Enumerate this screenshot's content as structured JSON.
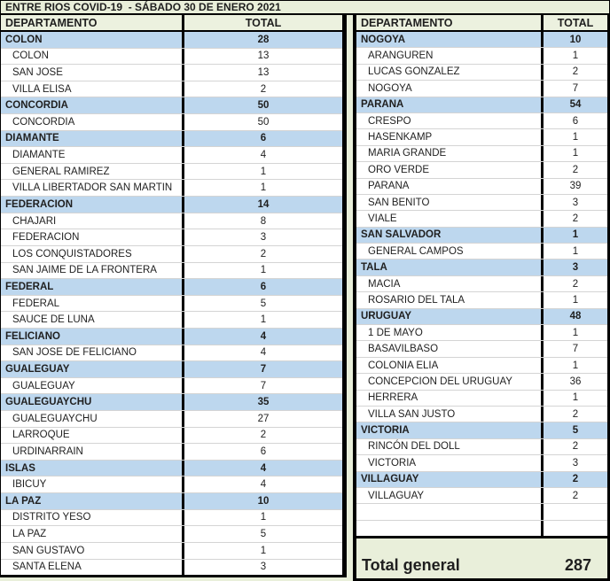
{
  "title": "ENTRE RIOS COVID-19  - SÁBADO 30 DE ENERO 2021",
  "columns": {
    "department": "DEPARTAMENTO",
    "total": "TOTAL"
  },
  "left_table": {
    "rows": [
      {
        "label": "COLON",
        "value": 28,
        "type": "group"
      },
      {
        "label": "COLON",
        "value": 13,
        "type": "item"
      },
      {
        "label": "SAN JOSE",
        "value": 13,
        "type": "item"
      },
      {
        "label": "VILLA ELISA",
        "value": 2,
        "type": "item"
      },
      {
        "label": "CONCORDIA",
        "value": 50,
        "type": "group"
      },
      {
        "label": "CONCORDIA",
        "value": 50,
        "type": "item"
      },
      {
        "label": "DIAMANTE",
        "value": 6,
        "type": "group"
      },
      {
        "label": "DIAMANTE",
        "value": 4,
        "type": "item"
      },
      {
        "label": "GENERAL RAMIREZ",
        "value": 1,
        "type": "item"
      },
      {
        "label": "VILLA LIBERTADOR SAN MARTIN",
        "value": 1,
        "type": "item"
      },
      {
        "label": "FEDERACION",
        "value": 14,
        "type": "group"
      },
      {
        "label": "CHAJARI",
        "value": 8,
        "type": "item"
      },
      {
        "label": "FEDERACION",
        "value": 3,
        "type": "item"
      },
      {
        "label": "LOS CONQUISTADORES",
        "value": 2,
        "type": "item"
      },
      {
        "label": "SAN JAIME DE LA FRONTERA",
        "value": 1,
        "type": "item"
      },
      {
        "label": "FEDERAL",
        "value": 6,
        "type": "group"
      },
      {
        "label": "FEDERAL",
        "value": 5,
        "type": "item"
      },
      {
        "label": "SAUCE DE LUNA",
        "value": 1,
        "type": "item"
      },
      {
        "label": "FELICIANO",
        "value": 4,
        "type": "group"
      },
      {
        "label": "SAN JOSE DE FELICIANO",
        "value": 4,
        "type": "item"
      },
      {
        "label": "GUALEGUAY",
        "value": 7,
        "type": "group"
      },
      {
        "label": "GUALEGUAY",
        "value": 7,
        "type": "item"
      },
      {
        "label": "GUALEGUAYCHU",
        "value": 35,
        "type": "group"
      },
      {
        "label": "GUALEGUAYCHU",
        "value": 27,
        "type": "item"
      },
      {
        "label": "LARROQUE",
        "value": 2,
        "type": "item"
      },
      {
        "label": "URDINARRAIN",
        "value": 6,
        "type": "item"
      },
      {
        "label": "ISLAS",
        "value": 4,
        "type": "group"
      },
      {
        "label": "IBICUY",
        "value": 4,
        "type": "item"
      },
      {
        "label": "LA PAZ",
        "value": 10,
        "type": "group"
      },
      {
        "label": "DISTRITO YESO",
        "value": 1,
        "type": "item"
      },
      {
        "label": "LA PAZ",
        "value": 5,
        "type": "item"
      },
      {
        "label": "SAN GUSTAVO",
        "value": 1,
        "type": "item"
      },
      {
        "label": "SANTA ELENA",
        "value": 3,
        "type": "item"
      }
    ]
  },
  "right_table": {
    "rows": [
      {
        "label": "NOGOYA",
        "value": 10,
        "type": "group"
      },
      {
        "label": "ARANGUREN",
        "value": 1,
        "type": "item"
      },
      {
        "label": "LUCAS GONZALEZ",
        "value": 2,
        "type": "item"
      },
      {
        "label": "NOGOYA",
        "value": 7,
        "type": "item"
      },
      {
        "label": "PARANA",
        "value": 54,
        "type": "group"
      },
      {
        "label": "CRESPO",
        "value": 6,
        "type": "item"
      },
      {
        "label": "HASENKAMP",
        "value": 1,
        "type": "item"
      },
      {
        "label": "MARIA GRANDE",
        "value": 1,
        "type": "item"
      },
      {
        "label": "ORO VERDE",
        "value": 2,
        "type": "item"
      },
      {
        "label": "PARANA",
        "value": 39,
        "type": "item"
      },
      {
        "label": "SAN BENITO",
        "value": 3,
        "type": "item"
      },
      {
        "label": "VIALE",
        "value": 2,
        "type": "item"
      },
      {
        "label": "SAN SALVADOR",
        "value": 1,
        "type": "group"
      },
      {
        "label": "GENERAL CAMPOS",
        "value": 1,
        "type": "item"
      },
      {
        "label": "TALA",
        "value": 3,
        "type": "group"
      },
      {
        "label": "MACIA",
        "value": 2,
        "type": "item"
      },
      {
        "label": "ROSARIO DEL TALA",
        "value": 1,
        "type": "item"
      },
      {
        "label": "URUGUAY",
        "value": 48,
        "type": "group"
      },
      {
        "label": "1 DE MAYO",
        "value": 1,
        "type": "item"
      },
      {
        "label": "BASAVILBASO",
        "value": 7,
        "type": "item"
      },
      {
        "label": "COLONIA ELIA",
        "value": 1,
        "type": "item"
      },
      {
        "label": "CONCEPCION DEL URUGUAY",
        "value": 36,
        "type": "item"
      },
      {
        "label": "HERRERA",
        "value": 1,
        "type": "item"
      },
      {
        "label": "VILLA SAN JUSTO",
        "value": 2,
        "type": "item"
      },
      {
        "label": "VICTORIA",
        "value": 5,
        "type": "group"
      },
      {
        "label": "RINCÓN DEL DOLL",
        "value": 2,
        "type": "item"
      },
      {
        "label": "VICTORIA",
        "value": 3,
        "type": "item"
      },
      {
        "label": "VILLAGUAY",
        "value": 2,
        "type": "group"
      },
      {
        "label": "VILLAGUAY",
        "value": 2,
        "type": "item"
      },
      {
        "label": "",
        "value": "",
        "type": "empty"
      },
      {
        "label": "",
        "value": "",
        "type": "empty"
      }
    ]
  },
  "grand_total": {
    "label": "Total general",
    "value": 287
  },
  "colors": {
    "background_green": "#E9EFDA",
    "subtotal_row_blue": "#BDD7EE",
    "gridline_gray": "#D4D4D4",
    "border_black": "#000000",
    "text": "#1F1F1F"
  }
}
